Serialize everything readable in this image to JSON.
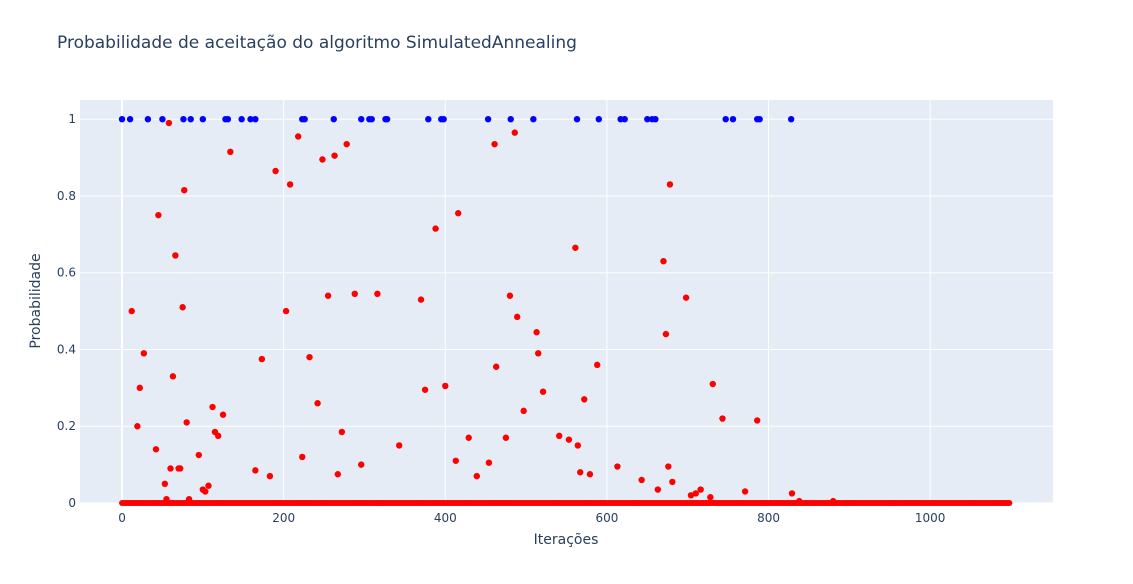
{
  "chart_data": {
    "type": "scatter",
    "title": "Probabilidade de aceitação do algoritmo SimulatedAnnealing",
    "xlabel": "Iterações",
    "ylabel": "Probabilidade",
    "xlim": [
      -52,
      1152
    ],
    "ylim": [
      0,
      1.05
    ],
    "xticks": [
      0,
      200,
      400,
      600,
      800,
      1000
    ],
    "yticks": [
      0,
      0.2,
      0.4,
      0.6,
      0.8,
      1
    ],
    "grid": true,
    "legend": "none",
    "colors": {
      "accepted": "#0000ff",
      "probability": "#ff0000",
      "background": "#e5ecf6",
      "grid": "#ffffff",
      "text": "#2a3f5f"
    },
    "series": [
      {
        "color": "#0000ff",
        "x": [
          0,
          10,
          32,
          50,
          76,
          85,
          100,
          128,
          131,
          148,
          159,
          165,
          223,
          226,
          262,
          296,
          306,
          309,
          326,
          328,
          379,
          395,
          398,
          453,
          481,
          509,
          563,
          590,
          617,
          622,
          650,
          656,
          660,
          747,
          756,
          786,
          789,
          828
        ],
        "y": [
          1,
          1,
          1,
          1,
          1,
          1,
          1,
          1,
          1,
          1,
          1,
          1,
          1,
          1,
          1,
          1,
          1,
          1,
          1,
          1,
          1,
          1,
          1,
          1,
          1,
          1,
          1,
          1,
          1,
          1,
          1,
          1,
          1,
          1,
          1,
          1,
          1,
          1
        ]
      },
      {
        "color": "#ff0000",
        "x": [
          58,
          12,
          19,
          22,
          27,
          42,
          45,
          53,
          55,
          60,
          63,
          66,
          70,
          72,
          75,
          77,
          80,
          83,
          95,
          100,
          103,
          107,
          112,
          115,
          119,
          125,
          134,
          165,
          173,
          183,
          190,
          203,
          208,
          218,
          223,
          232,
          242,
          248,
          255,
          263,
          267,
          272,
          278,
          288,
          296,
          316,
          343,
          370,
          375,
          388,
          400,
          413,
          416,
          429,
          439,
          454,
          461,
          463,
          475,
          480,
          486,
          489,
          497,
          513,
          515,
          521,
          541,
          553,
          561,
          564,
          567,
          572,
          579,
          588,
          613,
          643,
          663,
          670,
          673,
          676,
          678,
          681,
          698,
          704,
          710,
          716,
          728,
          731,
          743,
          771,
          786,
          829,
          838,
          880
        ],
        "y": [
          0.99,
          0.5,
          0.2,
          0.3,
          0.39,
          0.14,
          0.75,
          0.05,
          0.01,
          0.09,
          0.33,
          0.645,
          0.09,
          0.09,
          0.51,
          0.815,
          0.21,
          0.01,
          0.125,
          0.035,
          0.03,
          0.045,
          0.25,
          0.185,
          0.175,
          0.23,
          0.915,
          0.085,
          0.375,
          0.07,
          0.865,
          0.5,
          0.83,
          0.955,
          0.12,
          0.38,
          0.26,
          0.895,
          0.54,
          0.905,
          0.075,
          0.185,
          0.935,
          0.545,
          0.1,
          0.545,
          0.15,
          0.53,
          0.295,
          0.715,
          0.305,
          0.11,
          0.755,
          0.17,
          0.07,
          0.105,
          0.935,
          0.355,
          0.17,
          0.54,
          0.965,
          0.485,
          0.24,
          0.445,
          0.39,
          0.29,
          0.175,
          0.165,
          0.665,
          0.15,
          0.08,
          0.27,
          0.075,
          0.36,
          0.095,
          0.06,
          0.035,
          0.63,
          0.44,
          0.095,
          0.83,
          0.055,
          0.535,
          0.02,
          0.025,
          0.035,
          0.015,
          0.31,
          0.22,
          0.03,
          0.215,
          0.025,
          0.005,
          0.005
        ]
      }
    ],
    "baseline_series": {
      "color": "#ff0000",
      "y": 0,
      "x_range": [
        0,
        1099
      ],
      "description_note": ""
    }
  }
}
